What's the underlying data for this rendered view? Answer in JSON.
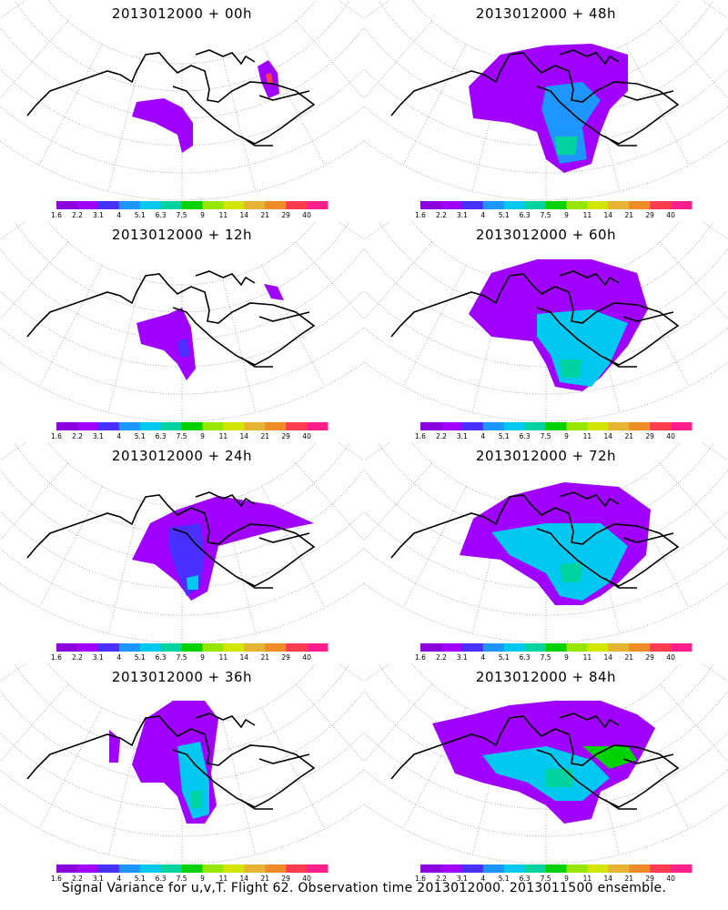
{
  "caption": "Signal Variance for u,v,T. Flight 62. Observation time 2013012000. 2013011500 ensemble.",
  "colorbar": {
    "labels": [
      "1.6",
      "2.2",
      "3.1",
      "4",
      "5.1",
      "6.3",
      "7.5",
      "9",
      "11",
      "14",
      "21",
      "29",
      "40"
    ],
    "colors": [
      "#8a00dc",
      "#a000ff",
      "#4a30ff",
      "#1e96ff",
      "#00c8f0",
      "#00d2a0",
      "#00d200",
      "#96e600",
      "#d2e600",
      "#e6b432",
      "#f08c28",
      "#ff3c50",
      "#ff1e8c"
    ]
  },
  "panels": [
    {
      "title": "2013012000 + 00h"
    },
    {
      "title": "2013012000 + 48h"
    },
    {
      "title": "2013012000 + 12h"
    },
    {
      "title": "2013012000 + 60h"
    },
    {
      "title": "2013012000 + 24h"
    },
    {
      "title": "2013012000 + 72h"
    },
    {
      "title": "2013012000 + 36h"
    },
    {
      "title": "2013012000 + 84h"
    }
  ]
}
